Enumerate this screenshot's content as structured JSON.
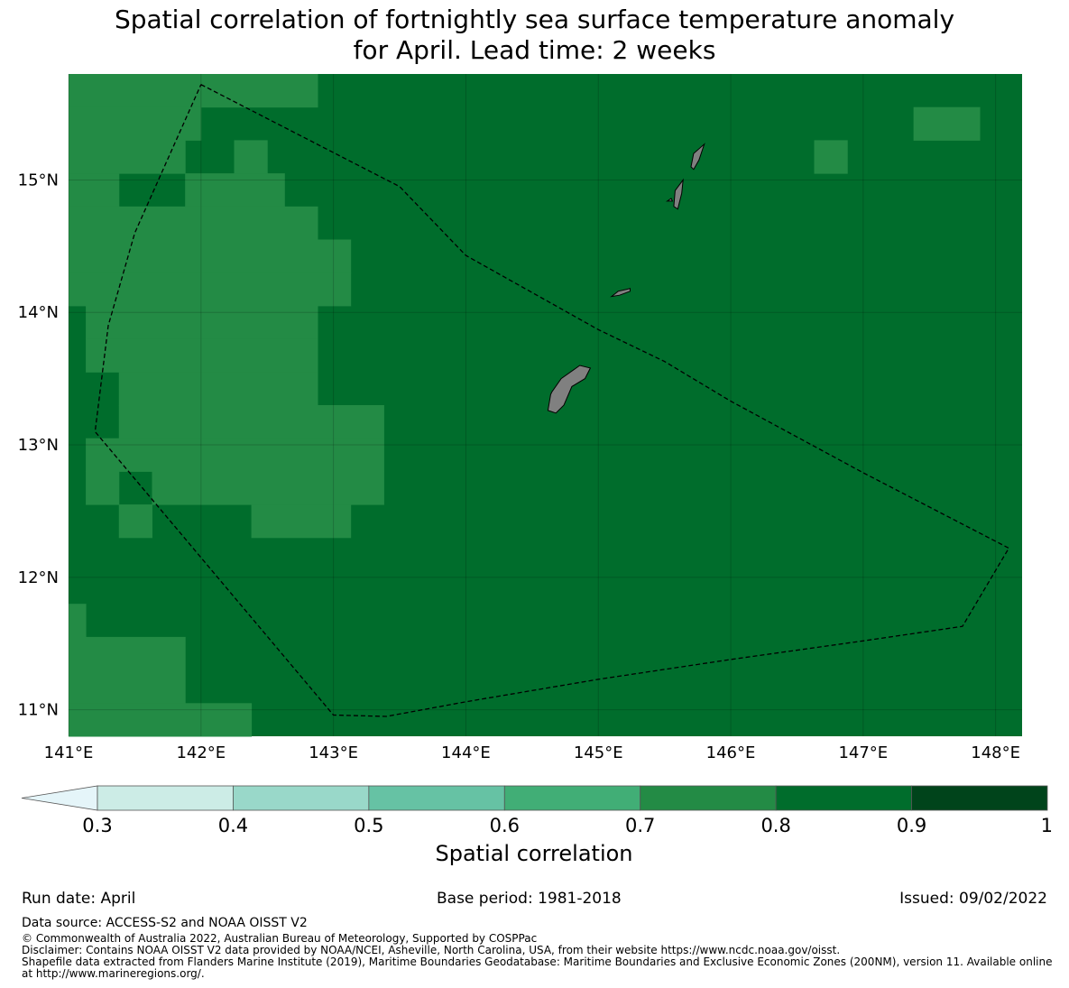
{
  "title": {
    "line1": "Spatial correlation of fortnightly sea surface temperature anomaly",
    "line2": "for April. Lead time: 2 weeks"
  },
  "map": {
    "lon_range": [
      141.0,
      148.2
    ],
    "lat_range": [
      10.8,
      15.8
    ],
    "x_ticks": [
      "141°E",
      "142°E",
      "143°E",
      "144°E",
      "145°E",
      "146°E",
      "147°E",
      "148°E"
    ],
    "y_ticks": [
      "15°N",
      "14°N",
      "13°N",
      "12°N",
      "11°N"
    ],
    "background_value": 0.85,
    "colors": {
      "0.7-0.8": "#238b45",
      "0.8-0.9": "#006d2c",
      "land": "#808080",
      "eez_line": "#000000"
    },
    "cells_0.7_0.8": [
      [
        141.0,
        15.55,
        142.88,
        15.8
      ],
      [
        141.0,
        15.3,
        142.0,
        15.55
      ],
      [
        141.0,
        15.05,
        141.88,
        15.3
      ],
      [
        142.25,
        15.05,
        142.5,
        15.3
      ],
      [
        146.63,
        15.05,
        146.88,
        15.3
      ],
      [
        147.38,
        15.3,
        147.88,
        15.55
      ],
      [
        141.0,
        14.8,
        141.38,
        15.05
      ],
      [
        141.88,
        14.8,
        142.63,
        15.05
      ],
      [
        141.0,
        14.55,
        142.88,
        14.8
      ],
      [
        141.0,
        14.3,
        143.13,
        14.55
      ],
      [
        141.0,
        14.05,
        143.13,
        14.3
      ],
      [
        141.13,
        13.8,
        142.88,
        14.05
      ],
      [
        141.13,
        13.55,
        142.88,
        13.8
      ],
      [
        141.38,
        13.3,
        142.88,
        13.55
      ],
      [
        141.38,
        13.05,
        143.38,
        13.3
      ],
      [
        141.13,
        12.8,
        143.38,
        13.05
      ],
      [
        141.13,
        12.55,
        141.38,
        12.8
      ],
      [
        141.63,
        12.55,
        143.38,
        12.8
      ],
      [
        141.38,
        12.3,
        141.63,
        12.55
      ],
      [
        142.38,
        12.3,
        143.13,
        12.55
      ],
      [
        141.0,
        11.55,
        141.13,
        11.8
      ],
      [
        141.0,
        11.05,
        141.88,
        11.55
      ],
      [
        141.0,
        10.8,
        142.38,
        11.05
      ]
    ],
    "eez_boundary": [
      [
        142.0,
        15.72
      ],
      [
        143.5,
        14.95
      ],
      [
        144.0,
        14.43
      ],
      [
        145.0,
        13.87
      ],
      [
        145.5,
        13.63
      ],
      [
        146.0,
        13.33
      ],
      [
        147.0,
        12.79
      ],
      [
        148.1,
        12.22
      ],
      [
        147.75,
        11.63
      ],
      [
        147.0,
        11.52
      ],
      [
        146.0,
        11.38
      ],
      [
        145.0,
        11.23
      ],
      [
        144.0,
        11.06
      ],
      [
        143.4,
        10.95
      ],
      [
        143.0,
        10.96
      ],
      [
        141.2,
        13.1
      ],
      [
        141.3,
        13.9
      ],
      [
        141.5,
        14.6
      ],
      [
        142.0,
        15.72
      ]
    ],
    "islands": [
      {
        "name": "guam-icon",
        "lonlat": [
          [
            144.65,
            13.4
          ],
          [
            144.72,
            13.5
          ],
          [
            144.86,
            13.6
          ],
          [
            144.94,
            13.58
          ],
          [
            144.9,
            13.5
          ],
          [
            144.8,
            13.44
          ],
          [
            144.74,
            13.3
          ],
          [
            144.68,
            13.24
          ],
          [
            144.62,
            13.26
          ],
          [
            144.64,
            13.38
          ]
        ]
      },
      {
        "name": "rota-icon",
        "lonlat": [
          [
            145.1,
            14.12
          ],
          [
            145.15,
            14.16
          ],
          [
            145.24,
            14.18
          ],
          [
            145.24,
            14.16
          ],
          [
            145.16,
            14.13
          ]
        ]
      },
      {
        "name": "tinian-icon",
        "lonlat": [
          [
            145.57,
            14.8
          ],
          [
            145.58,
            14.92
          ],
          [
            145.64,
            15.0
          ],
          [
            145.63,
            14.9
          ],
          [
            145.6,
            14.78
          ]
        ]
      },
      {
        "name": "saipan-icon",
        "lonlat": [
          [
            145.7,
            15.1
          ],
          [
            145.72,
            15.2
          ],
          [
            145.8,
            15.27
          ],
          [
            145.76,
            15.15
          ],
          [
            145.72,
            15.08
          ]
        ]
      },
      {
        "name": "aguijan-icon",
        "lonlat": [
          [
            145.52,
            14.84
          ],
          [
            145.55,
            14.86
          ],
          [
            145.56,
            14.84
          ]
        ]
      }
    ]
  },
  "colorbar": {
    "title": "Spatial correlation",
    "levels": [
      "0.3",
      "0.4",
      "0.5",
      "0.6",
      "0.7",
      "0.8",
      "0.9",
      "1"
    ],
    "colors": [
      "#ccece6",
      "#99d8c9",
      "#66c2a4",
      "#41ae76",
      "#238b45",
      "#006d2c",
      "#00441b"
    ],
    "extend_color": "#e5f5f9"
  },
  "footer": {
    "run_date": "Run date: April",
    "base_period": "Base period: 1981-2018",
    "issued": "Issued: 09/02/2022",
    "data_source": "Data source: ACCESS-S2 and NOAA OISST V2",
    "copyright": "© Commonwealth of Australia 2022, Australian Bureau of Meteorology, Supported by COSPPac",
    "disclaimer": "Disclaimer: Contains NOAA OISST V2 data provided by NOAA/NCEI, Asheville, North Carolina, USA, from their website https://www.ncdc.noaa.gov/oisst.",
    "shapefile_line1": "Shapefile data extracted from Flanders Marine Institute (2019), Maritime Boundaries Geodatabase: Maritime Boundaries and Exclusive Economic Zones (200NM), version 11. Available online",
    "shapefile_line2": "at http://www.marineregions.org/."
  }
}
